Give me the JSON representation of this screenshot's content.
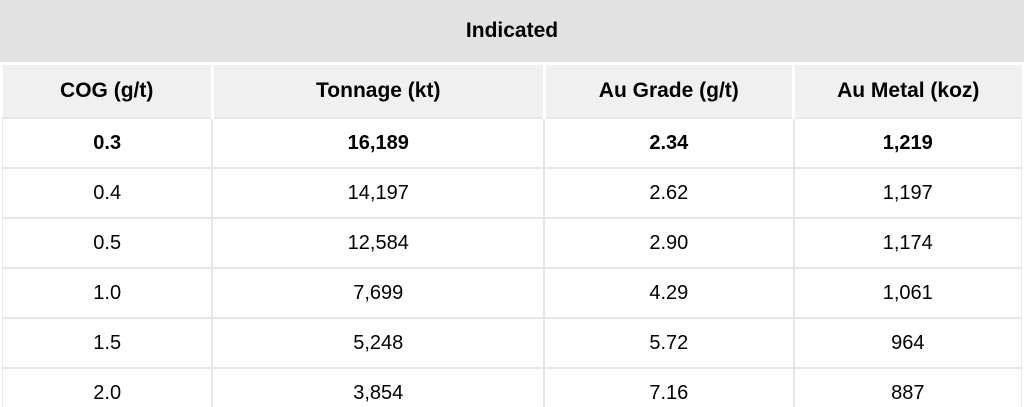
{
  "chart_data": {
    "type": "table",
    "title": "Indicated",
    "columns": [
      "COG (g/t)",
      "Tonnage (kt)",
      "Au Grade (g/t)",
      "Au Metal (koz)"
    ],
    "rows": [
      [
        "0.3",
        "16,189",
        "2.34",
        "1,219"
      ],
      [
        "0.4",
        "14,197",
        "2.62",
        "1,197"
      ],
      [
        "0.5",
        "12,584",
        "2.90",
        "1,174"
      ],
      [
        "1.0",
        "7,699",
        "4.29",
        "1,061"
      ],
      [
        "1.5",
        "5,248",
        "5.72",
        "964"
      ],
      [
        "2.0",
        "3,854",
        "7.16",
        "887"
      ]
    ],
    "bold_row_index": 0,
    "layout_hints": {
      "cell_alignment": "center",
      "title_row_spans_all_columns": true,
      "gridlines": "light horizontal and vertical separators"
    }
  },
  "colors": {
    "title_bg": "#e2e2e2",
    "header_bg": "#f0f0f0",
    "row_bg": "#ffffff",
    "border": "#e6e6e6",
    "text": "#000000"
  }
}
